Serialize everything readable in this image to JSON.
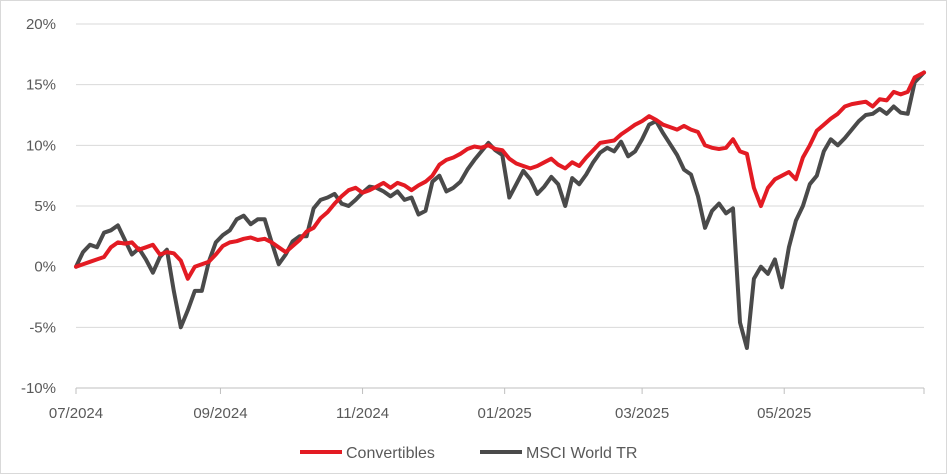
{
  "chart_data": {
    "type": "line",
    "xlabel": "",
    "ylabel": "",
    "x_range": [
      "2024-07-01",
      "2025-06-30"
    ],
    "x_ticks": [
      {
        "date": "2024-07-01",
        "label": "07/2024"
      },
      {
        "date": "2024-09-01",
        "label": "09/2024"
      },
      {
        "date": "2024-11-01",
        "label": "11/2024"
      },
      {
        "date": "2025-01-01",
        "label": "01/2025"
      },
      {
        "date": "2025-03-01",
        "label": "03/2025"
      },
      {
        "date": "2025-05-01",
        "label": "05/2025"
      }
    ],
    "ylim": [
      -10,
      20
    ],
    "y_ticks": [
      {
        "value": 20,
        "label": "20%"
      },
      {
        "value": 15,
        "label": "15%"
      },
      {
        "value": 10,
        "label": "10%"
      },
      {
        "value": 5,
        "label": "5%"
      },
      {
        "value": 0,
        "label": "0%"
      },
      {
        "value": -5,
        "label": "-5%"
      },
      {
        "value": -10,
        "label": "-10%"
      }
    ],
    "grid": "horizontal",
    "legend_position": "bottom",
    "series": [
      {
        "name": "Convertibles",
        "color": "#e31b23",
        "points": [
          [
            "2024-07-01",
            0.0
          ],
          [
            "2024-07-04",
            0.2
          ],
          [
            "2024-07-07",
            0.4
          ],
          [
            "2024-07-10",
            0.6
          ],
          [
            "2024-07-13",
            0.8
          ],
          [
            "2024-07-16",
            1.6
          ],
          [
            "2024-07-19",
            2.0
          ],
          [
            "2024-07-22",
            1.9
          ],
          [
            "2024-07-25",
            2.0
          ],
          [
            "2024-07-28",
            1.4
          ],
          [
            "2024-07-31",
            1.6
          ],
          [
            "2024-08-03",
            1.8
          ],
          [
            "2024-08-06",
            1.0
          ],
          [
            "2024-08-09",
            1.2
          ],
          [
            "2024-08-12",
            1.1
          ],
          [
            "2024-08-15",
            0.5
          ],
          [
            "2024-08-18",
            -1.0
          ],
          [
            "2024-08-21",
            0.0
          ],
          [
            "2024-08-24",
            0.2
          ],
          [
            "2024-08-27",
            0.4
          ],
          [
            "2024-08-30",
            1.0
          ],
          [
            "2024-09-02",
            1.7
          ],
          [
            "2024-09-05",
            2.0
          ],
          [
            "2024-09-08",
            2.1
          ],
          [
            "2024-09-11",
            2.3
          ],
          [
            "2024-09-14",
            2.4
          ],
          [
            "2024-09-17",
            2.2
          ],
          [
            "2024-09-20",
            2.3
          ],
          [
            "2024-09-23",
            2.0
          ],
          [
            "2024-09-26",
            1.6
          ],
          [
            "2024-09-29",
            1.2
          ],
          [
            "2024-10-02",
            1.7
          ],
          [
            "2024-10-05",
            2.2
          ],
          [
            "2024-10-08",
            2.9
          ],
          [
            "2024-10-11",
            3.2
          ],
          [
            "2024-10-14",
            4.0
          ],
          [
            "2024-10-17",
            4.5
          ],
          [
            "2024-10-20",
            5.2
          ],
          [
            "2024-10-23",
            5.8
          ],
          [
            "2024-10-26",
            6.3
          ],
          [
            "2024-10-29",
            6.5
          ],
          [
            "2024-11-01",
            6.1
          ],
          [
            "2024-11-04",
            6.3
          ],
          [
            "2024-11-07",
            6.6
          ],
          [
            "2024-11-10",
            6.9
          ],
          [
            "2024-11-13",
            6.5
          ],
          [
            "2024-11-16",
            6.9
          ],
          [
            "2024-11-19",
            6.7
          ],
          [
            "2024-11-22",
            6.3
          ],
          [
            "2024-11-25",
            6.7
          ],
          [
            "2024-11-28",
            7.0
          ],
          [
            "2024-12-01",
            7.5
          ],
          [
            "2024-12-04",
            8.4
          ],
          [
            "2024-12-07",
            8.8
          ],
          [
            "2024-12-10",
            9.0
          ],
          [
            "2024-12-13",
            9.3
          ],
          [
            "2024-12-16",
            9.7
          ],
          [
            "2024-12-19",
            9.9
          ],
          [
            "2024-12-22",
            9.8
          ],
          [
            "2024-12-25",
            10.0
          ],
          [
            "2024-12-28",
            9.7
          ],
          [
            "2024-12-31",
            9.6
          ],
          [
            "2025-01-03",
            8.9
          ],
          [
            "2025-01-06",
            8.5
          ],
          [
            "2025-01-09",
            8.3
          ],
          [
            "2025-01-12",
            8.1
          ],
          [
            "2025-01-15",
            8.3
          ],
          [
            "2025-01-18",
            8.6
          ],
          [
            "2025-01-21",
            8.9
          ],
          [
            "2025-01-24",
            8.4
          ],
          [
            "2025-01-27",
            8.1
          ],
          [
            "2025-01-30",
            8.6
          ],
          [
            "2025-02-02",
            8.3
          ],
          [
            "2025-02-05",
            9.0
          ],
          [
            "2025-02-08",
            9.6
          ],
          [
            "2025-02-11",
            10.2
          ],
          [
            "2025-02-14",
            10.3
          ],
          [
            "2025-02-17",
            10.4
          ],
          [
            "2025-02-20",
            10.9
          ],
          [
            "2025-02-23",
            11.3
          ],
          [
            "2025-02-26",
            11.7
          ],
          [
            "2025-03-01",
            12.0
          ],
          [
            "2025-03-04",
            12.4
          ],
          [
            "2025-03-07",
            12.1
          ],
          [
            "2025-03-10",
            11.7
          ],
          [
            "2025-03-13",
            11.5
          ],
          [
            "2025-03-16",
            11.3
          ],
          [
            "2025-03-19",
            11.6
          ],
          [
            "2025-03-22",
            11.3
          ],
          [
            "2025-03-25",
            11.1
          ],
          [
            "2025-03-28",
            10.0
          ],
          [
            "2025-03-31",
            9.8
          ],
          [
            "2025-04-03",
            9.7
          ],
          [
            "2025-04-06",
            9.8
          ],
          [
            "2025-04-09",
            10.5
          ],
          [
            "2025-04-12",
            9.5
          ],
          [
            "2025-04-15",
            9.3
          ],
          [
            "2025-04-18",
            6.5
          ],
          [
            "2025-04-21",
            5.0
          ],
          [
            "2025-04-24",
            6.5
          ],
          [
            "2025-04-27",
            7.2
          ],
          [
            "2025-04-30",
            7.5
          ],
          [
            "2025-05-03",
            7.8
          ],
          [
            "2025-05-06",
            7.2
          ],
          [
            "2025-05-09",
            9.0
          ],
          [
            "2025-05-12",
            10.0
          ],
          [
            "2025-05-15",
            11.2
          ],
          [
            "2025-05-18",
            11.7
          ],
          [
            "2025-05-21",
            12.2
          ],
          [
            "2025-05-24",
            12.6
          ],
          [
            "2025-05-27",
            13.2
          ],
          [
            "2025-05-30",
            13.4
          ],
          [
            "2025-06-02",
            13.5
          ],
          [
            "2025-06-05",
            13.6
          ],
          [
            "2025-06-08",
            13.2
          ],
          [
            "2025-06-11",
            13.8
          ],
          [
            "2025-06-14",
            13.7
          ],
          [
            "2025-06-17",
            14.4
          ],
          [
            "2025-06-20",
            14.2
          ],
          [
            "2025-06-23",
            14.4
          ],
          [
            "2025-06-26",
            15.6
          ],
          [
            "2025-06-30",
            16.0
          ]
        ]
      },
      {
        "name": "MSCI World TR",
        "color": "#4a4a4a",
        "points": [
          [
            "2024-07-01",
            0.0
          ],
          [
            "2024-07-04",
            1.2
          ],
          [
            "2024-07-07",
            1.8
          ],
          [
            "2024-07-10",
            1.6
          ],
          [
            "2024-07-13",
            2.8
          ],
          [
            "2024-07-16",
            3.0
          ],
          [
            "2024-07-19",
            3.4
          ],
          [
            "2024-07-22",
            2.2
          ],
          [
            "2024-07-25",
            1.0
          ],
          [
            "2024-07-28",
            1.5
          ],
          [
            "2024-07-31",
            0.6
          ],
          [
            "2024-08-03",
            -0.5
          ],
          [
            "2024-08-06",
            0.8
          ],
          [
            "2024-08-09",
            1.4
          ],
          [
            "2024-08-12",
            -2.0
          ],
          [
            "2024-08-15",
            -5.0
          ],
          [
            "2024-08-18",
            -3.6
          ],
          [
            "2024-08-21",
            -2.0
          ],
          [
            "2024-08-24",
            -2.0
          ],
          [
            "2024-08-27",
            0.4
          ],
          [
            "2024-08-30",
            2.0
          ],
          [
            "2024-09-02",
            2.6
          ],
          [
            "2024-09-05",
            3.0
          ],
          [
            "2024-09-08",
            3.9
          ],
          [
            "2024-09-11",
            4.2
          ],
          [
            "2024-09-14",
            3.5
          ],
          [
            "2024-09-17",
            3.9
          ],
          [
            "2024-09-20",
            3.9
          ],
          [
            "2024-09-23",
            2.0
          ],
          [
            "2024-09-26",
            0.2
          ],
          [
            "2024-09-29",
            1.0
          ],
          [
            "2024-10-02",
            2.1
          ],
          [
            "2024-10-05",
            2.5
          ],
          [
            "2024-10-08",
            2.5
          ],
          [
            "2024-10-11",
            4.8
          ],
          [
            "2024-10-14",
            5.5
          ],
          [
            "2024-10-17",
            5.7
          ],
          [
            "2024-10-20",
            6.0
          ],
          [
            "2024-10-23",
            5.2
          ],
          [
            "2024-10-26",
            5.0
          ],
          [
            "2024-10-29",
            5.5
          ],
          [
            "2024-11-01",
            6.1
          ],
          [
            "2024-11-04",
            6.6
          ],
          [
            "2024-11-07",
            6.5
          ],
          [
            "2024-11-10",
            6.2
          ],
          [
            "2024-11-13",
            5.8
          ],
          [
            "2024-11-16",
            6.2
          ],
          [
            "2024-11-19",
            5.5
          ],
          [
            "2024-11-22",
            5.7
          ],
          [
            "2024-11-25",
            4.3
          ],
          [
            "2024-11-28",
            4.6
          ],
          [
            "2024-12-01",
            7.0
          ],
          [
            "2024-12-04",
            7.5
          ],
          [
            "2024-12-07",
            6.2
          ],
          [
            "2024-12-10",
            6.5
          ],
          [
            "2024-12-13",
            7.0
          ],
          [
            "2024-12-16",
            8.0
          ],
          [
            "2024-12-19",
            8.8
          ],
          [
            "2024-12-22",
            9.5
          ],
          [
            "2024-12-25",
            10.2
          ],
          [
            "2024-12-28",
            9.6
          ],
          [
            "2024-12-31",
            9.2
          ],
          [
            "2025-01-03",
            5.7
          ],
          [
            "2025-01-06",
            6.8
          ],
          [
            "2025-01-09",
            7.9
          ],
          [
            "2025-01-12",
            7.2
          ],
          [
            "2025-01-15",
            6.0
          ],
          [
            "2025-01-18",
            6.6
          ],
          [
            "2025-01-21",
            7.4
          ],
          [
            "2025-01-24",
            6.8
          ],
          [
            "2025-01-27",
            5.0
          ],
          [
            "2025-01-30",
            7.3
          ],
          [
            "2025-02-02",
            6.8
          ],
          [
            "2025-02-05",
            7.6
          ],
          [
            "2025-02-08",
            8.6
          ],
          [
            "2025-02-11",
            9.4
          ],
          [
            "2025-02-14",
            9.8
          ],
          [
            "2025-02-17",
            9.5
          ],
          [
            "2025-02-20",
            10.3
          ],
          [
            "2025-02-23",
            9.1
          ],
          [
            "2025-02-26",
            9.5
          ],
          [
            "2025-03-01",
            10.5
          ],
          [
            "2025-03-04",
            11.7
          ],
          [
            "2025-03-07",
            12.0
          ],
          [
            "2025-03-10",
            11.0
          ],
          [
            "2025-03-13",
            10.1
          ],
          [
            "2025-03-16",
            9.2
          ],
          [
            "2025-03-19",
            8.0
          ],
          [
            "2025-03-22",
            7.6
          ],
          [
            "2025-03-25",
            5.8
          ],
          [
            "2025-03-28",
            3.2
          ],
          [
            "2025-03-31",
            4.6
          ],
          [
            "2025-04-03",
            5.2
          ],
          [
            "2025-04-06",
            4.4
          ],
          [
            "2025-04-09",
            4.8
          ],
          [
            "2025-04-12",
            -4.6
          ],
          [
            "2025-04-15",
            -6.7
          ],
          [
            "2025-04-18",
            -1.0
          ],
          [
            "2025-04-21",
            0.0
          ],
          [
            "2025-04-24",
            -0.6
          ],
          [
            "2025-04-27",
            0.6
          ],
          [
            "2025-04-30",
            -1.7
          ],
          [
            "2025-05-03",
            1.6
          ],
          [
            "2025-05-06",
            3.8
          ],
          [
            "2025-05-09",
            5.0
          ],
          [
            "2025-05-12",
            6.8
          ],
          [
            "2025-05-15",
            7.5
          ],
          [
            "2025-05-18",
            9.5
          ],
          [
            "2025-05-21",
            10.5
          ],
          [
            "2025-05-24",
            10.0
          ],
          [
            "2025-05-27",
            10.6
          ],
          [
            "2025-05-30",
            11.3
          ],
          [
            "2025-06-02",
            12.0
          ],
          [
            "2025-06-05",
            12.5
          ],
          [
            "2025-06-08",
            12.6
          ],
          [
            "2025-06-11",
            13.0
          ],
          [
            "2025-06-14",
            12.6
          ],
          [
            "2025-06-17",
            13.2
          ],
          [
            "2025-06-20",
            12.7
          ],
          [
            "2025-06-23",
            12.6
          ],
          [
            "2025-06-26",
            15.2
          ],
          [
            "2025-06-30",
            16.0
          ]
        ]
      }
    ]
  }
}
